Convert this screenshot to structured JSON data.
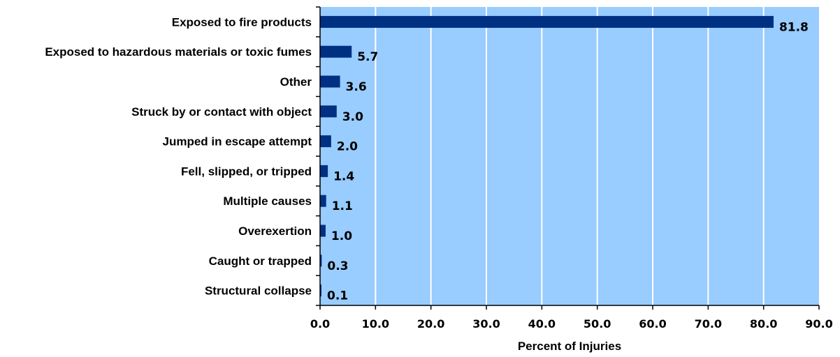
{
  "chart_data": {
    "type": "bar",
    "orientation": "horizontal",
    "categories": [
      "Exposed to fire products",
      "Exposed to hazardous materials or toxic fumes",
      "Other",
      "Struck by or contact with object",
      "Jumped in escape attempt",
      "Fell, slipped, or tripped",
      "Multiple causes",
      "Overexertion",
      "Caught or trapped",
      "Structural collapse"
    ],
    "values": [
      81.8,
      5.7,
      3.6,
      3.0,
      2.0,
      1.4,
      1.1,
      1.0,
      0.3,
      0.1
    ],
    "value_labels": [
      "81.8",
      "5.7",
      "3.6",
      "3.0",
      "2.0",
      "1.4",
      "1.1",
      "1.0",
      "0.3",
      "0.1"
    ],
    "xlabel": "Percent of Injuries",
    "xlim": [
      0,
      90
    ],
    "xticks": [
      0,
      10,
      20,
      30,
      40,
      50,
      60,
      70,
      80,
      90
    ],
    "xtick_labels": [
      "0.0",
      "10.0",
      "20.0",
      "30.0",
      "40.0",
      "50.0",
      "60.0",
      "70.0",
      "80.0",
      "90.0"
    ],
    "grid": "vertical",
    "colors": {
      "bar": "#003082",
      "plot_background": "#99ccff",
      "grid": "#ffffff",
      "axis": "#000000"
    }
  }
}
